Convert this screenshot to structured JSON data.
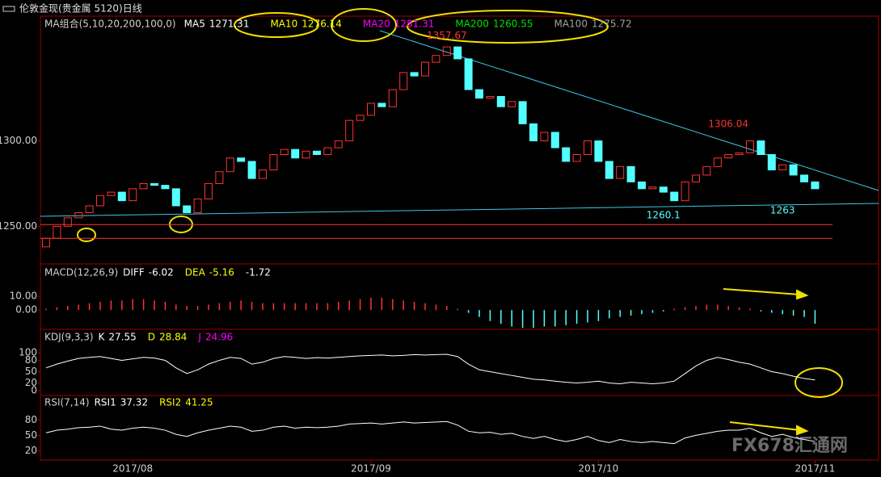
{
  "title": "伦敦金现(贵金属 5120)日线",
  "watermark": "FX678汇通网",
  "chart_data": {
    "type": "candlestick",
    "ma_label": "MA组合(5,10,20,200,100,0)",
    "ma_legend": [
      {
        "name": "MA5",
        "value": 1271.31,
        "color": "#ffffff"
      },
      {
        "name": "MA10",
        "value": 1276.14,
        "color": "#ffff00"
      },
      {
        "name": "MA20",
        "value": 1281.31,
        "color": "#ff00ff"
      },
      {
        "name": "MA200",
        "value": 1260.55,
        "color": "#00e000"
      },
      {
        "name": "MA100",
        "value": 1275.72,
        "color": "#a0a0a0"
      }
    ],
    "categories": [
      null,
      null,
      null,
      null,
      null,
      null,
      null,
      null,
      "2017/08",
      null,
      null,
      null,
      null,
      null,
      null,
      null,
      null,
      null,
      null,
      null,
      null,
      null,
      null,
      null,
      null,
      null,
      null,
      null,
      null,
      null,
      "2017/09",
      null,
      null,
      null,
      null,
      null,
      null,
      null,
      null,
      null,
      null,
      null,
      null,
      null,
      null,
      null,
      null,
      null,
      null,
      null,
      null,
      "2017/10",
      null,
      null,
      null,
      null,
      null,
      null,
      null,
      null,
      null,
      null,
      null,
      null,
      null,
      null,
      null,
      null,
      null,
      null,
      null,
      "2017/11"
    ],
    "open": [
      1238,
      1243,
      1250,
      1255,
      1258,
      1262,
      1268,
      1270,
      1265,
      1272,
      1275,
      1274,
      1272,
      1262,
      1258,
      1266,
      1275,
      1282,
      1290,
      1288,
      1278,
      1283,
      1292,
      1295,
      1290,
      1294,
      1292,
      1296,
      1300,
      1312,
      1315,
      1322,
      1320,
      1330,
      1340,
      1338,
      1346,
      1350,
      1355,
      1348,
      1330,
      1325,
      1326,
      1320,
      1323,
      1310,
      1300,
      1305,
      1296,
      1288,
      1292,
      1300,
      1288,
      1278,
      1285,
      1276,
      1272,
      1273,
      1270,
      1265,
      1276,
      1280,
      1285,
      1290,
      1292,
      1293,
      1300,
      1292,
      1283,
      1286,
      1280,
      1276
    ],
    "close": [
      1243,
      1250,
      1255,
      1258,
      1262,
      1268,
      1270,
      1265,
      1272,
      1275,
      1274,
      1272,
      1262,
      1258,
      1266,
      1275,
      1282,
      1290,
      1288,
      1278,
      1283,
      1292,
      1295,
      1290,
      1294,
      1292,
      1296,
      1300,
      1312,
      1315,
      1322,
      1320,
      1330,
      1340,
      1338,
      1346,
      1350,
      1355,
      1348,
      1330,
      1325,
      1326,
      1320,
      1323,
      1310,
      1300,
      1305,
      1296,
      1288,
      1292,
      1300,
      1288,
      1278,
      1285,
      1276,
      1272,
      1273,
      1270,
      1265,
      1276,
      1280,
      1285,
      1290,
      1292,
      1293,
      1300,
      1292,
      1283,
      1286,
      1280,
      1276,
      1272
    ],
    "up_color": "#ff3232",
    "down_color": "#54ffff",
    "ylim": [
      1228,
      1373
    ],
    "yticks": [
      {
        "value": 1300,
        "label": "1300.00"
      },
      {
        "value": 1250,
        "label": "1250.00"
      }
    ],
    "hlines": [
      1251,
      1243
    ],
    "hline_color": "#ff3232",
    "annotations": [
      {
        "value": 1357.67,
        "index": 37,
        "color": "#ff3232"
      },
      {
        "value": 1306.04,
        "index": 63,
        "color": "#ff3232"
      },
      {
        "value": 1260.1,
        "index": 57,
        "color": "#54ffff"
      },
      {
        "value": 1263.0,
        "index": 68,
        "color": "#54ffff"
      }
    ],
    "macd": {
      "label": "MACD(12,26,9)",
      "lines": [
        {
          "name": "DIFF",
          "last": -6.02,
          "color": "#ffffff"
        },
        {
          "name": "DEA",
          "last": -5.16,
          "color": "#ffff00"
        }
      ],
      "histogram_last": -1.72,
      "values": [
        1,
        2,
        3,
        4,
        5,
        6,
        7,
        7,
        8,
        8,
        7,
        6,
        4,
        3,
        3,
        4,
        5,
        6,
        7,
        6,
        5,
        5,
        5,
        5,
        5,
        5,
        5,
        6,
        7,
        8,
        9,
        9,
        8,
        7,
        6,
        5,
        4,
        3,
        1,
        -2,
        -5,
        -8,
        -10,
        -12,
        -13,
        -13,
        -12,
        -12,
        -11,
        -10,
        -9,
        -8,
        -6,
        -5,
        -4,
        -3,
        -2,
        -1,
        1,
        2,
        3,
        4,
        4,
        3,
        2,
        1,
        -1,
        -2,
        -3,
        -4,
        -5,
        -10
      ],
      "ylim": [
        -14,
        33
      ],
      "yticks": [
        {
          "value": 10,
          "label": "10.00"
        },
        {
          "value": 0,
          "label": "0.00"
        }
      ]
    },
    "kdj": {
      "label": "KDJ(9,3,3)",
      "series": [
        {
          "name": "K",
          "last": 27.55,
          "color": "#ffffff",
          "values": [
            60,
            70,
            78,
            85,
            88,
            90,
            85,
            80,
            84,
            88,
            86,
            80,
            60,
            45,
            55,
            70,
            80,
            88,
            85,
            70,
            75,
            85,
            90,
            88,
            85,
            87,
            86,
            88,
            90,
            92,
            93,
            94,
            92,
            93,
            95,
            94,
            95,
            96,
            90,
            70,
            55,
            50,
            45,
            40,
            35,
            30,
            28,
            25,
            22,
            20,
            22,
            25,
            20,
            18,
            22,
            20,
            18,
            20,
            25,
            45,
            65,
            80,
            88,
            82,
            75,
            70,
            60,
            50,
            45,
            38,
            32,
            28
          ]
        },
        {
          "name": "D",
          "last": 28.84,
          "color": "#ffff00"
        },
        {
          "name": "J",
          "last": 24.96,
          "color": "#ff00ff"
        }
      ],
      "ylim": [
        -13,
        160
      ],
      "yticks": [
        100,
        80,
        50,
        20,
        0
      ]
    },
    "rsi": {
      "label": "RSI(7,14)",
      "series": [
        {
          "name": "RSI1",
          "last": 37.32,
          "color": "#ffffff",
          "values": [
            55,
            60,
            62,
            65,
            66,
            68,
            62,
            60,
            64,
            66,
            64,
            60,
            52,
            48,
            55,
            60,
            64,
            68,
            66,
            58,
            60,
            66,
            68,
            64,
            66,
            65,
            66,
            68,
            72,
            73,
            74,
            72,
            74,
            76,
            74,
            75,
            76,
            77,
            70,
            58,
            55,
            56,
            52,
            54,
            48,
            44,
            48,
            42,
            38,
            42,
            48,
            40,
            36,
            42,
            38,
            36,
            38,
            36,
            34,
            45,
            50,
            54,
            58,
            60,
            60,
            64,
            55,
            48,
            52,
            46,
            42,
            38
          ]
        },
        {
          "name": "RSI2",
          "last": 41.25,
          "color": "#ffff00"
        }
      ],
      "ylim": [
        2,
        126
      ],
      "yticks": [
        80,
        50,
        20
      ]
    }
  }
}
